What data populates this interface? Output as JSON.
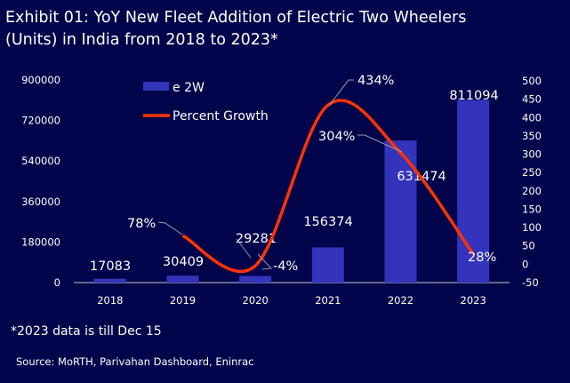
{
  "title_line1": "Exhibit 01: YoY New Fleet Addition of Electric Two Wheelers",
  "title_line2": "(Units) in India from 2018 to 2023*",
  "footnote": "*2023 data is till Dec 15",
  "source": "Source:  MoRTH, Parivahan Dashboard, Eninrac",
  "chart_data": {
    "type": "bar+line",
    "categories": [
      "2018",
      "2019",
      "2020",
      "2021",
      "2022",
      "2023"
    ],
    "series": [
      {
        "name": "e 2W",
        "type": "bar",
        "axis": "left",
        "values": [
          17083,
          30409,
          29281,
          156374,
          631474,
          811094
        ],
        "labels": [
          "17083",
          "30409",
          "29281",
          "156374",
          "631474",
          "811094"
        ],
        "color": "#3333bb"
      },
      {
        "name": "Percent Growth",
        "type": "line",
        "axis": "right",
        "smooth": true,
        "x": [
          "2019",
          "2020",
          "2021",
          "2022",
          "2023"
        ],
        "values": [
          78,
          -4,
          434,
          304,
          28
        ],
        "labels": [
          "78%",
          "-4%",
          "434%",
          "304%",
          "28%"
        ],
        "color": "#ff3300"
      }
    ],
    "left_axis": {
      "ylim": [
        0,
        900000
      ],
      "ticks": [
        "0",
        "180000",
        "360000",
        "540000",
        "720000",
        "900000"
      ]
    },
    "right_axis": {
      "ylim": [
        -50,
        500
      ],
      "ticks": [
        "-50",
        "0",
        "50",
        "100",
        "150",
        "200",
        "250",
        "300",
        "350",
        "400",
        "450",
        "500"
      ]
    },
    "legend_placement": "top-left",
    "grid": false
  }
}
